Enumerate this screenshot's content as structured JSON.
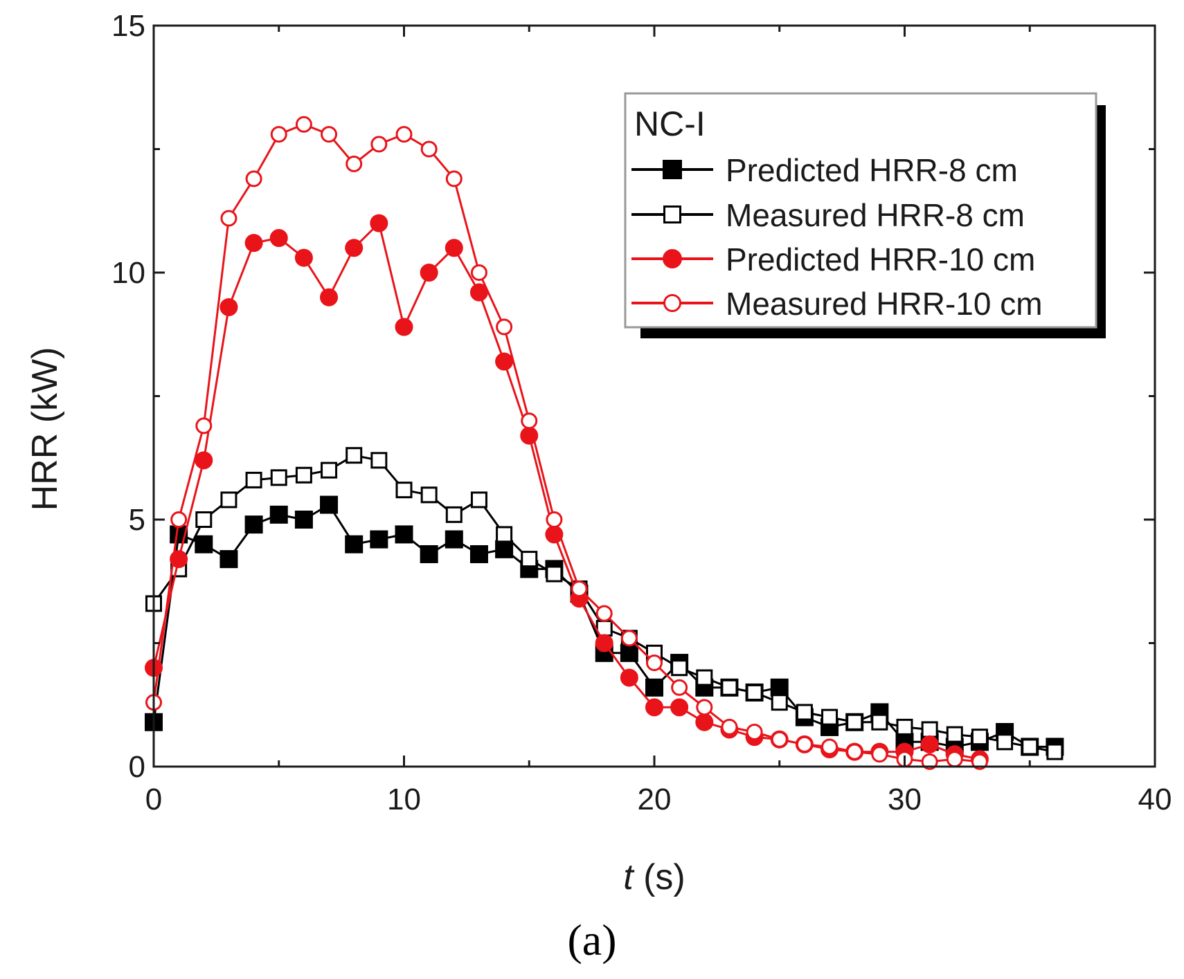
{
  "chart_data": {
    "type": "line",
    "panel_label": "(a)",
    "xlabel_italic": "t",
    "xlabel_unit": " (s)",
    "ylabel": "HRR (kW)",
    "xlim": [
      0,
      40
    ],
    "ylim": [
      0,
      15
    ],
    "x_ticks": [
      "0",
      "10",
      "20",
      "30",
      "40"
    ],
    "y_ticks": [
      "0",
      "5",
      "10",
      "15"
    ],
    "grid": false,
    "legend_title": "NC-I",
    "legend_position": "top-right",
    "series": [
      {
        "name": "Predicted HRR-8 cm",
        "color": "#000000",
        "marker": "square-filled",
        "x": [
          0,
          1,
          2,
          3,
          4,
          5,
          6,
          7,
          8,
          9,
          10,
          11,
          12,
          13,
          14,
          15,
          16,
          17,
          18,
          19,
          20,
          21,
          22,
          23,
          24,
          25,
          26,
          27,
          28,
          29,
          30,
          31,
          32,
          33,
          34,
          35,
          36
        ],
        "y": [
          0.9,
          4.7,
          4.5,
          4.2,
          4.9,
          5.1,
          5.0,
          5.3,
          4.5,
          4.6,
          4.7,
          4.3,
          4.6,
          4.3,
          4.4,
          4.0,
          4.0,
          3.5,
          2.3,
          2.3,
          1.6,
          2.1,
          1.6,
          1.6,
          1.5,
          1.6,
          1.0,
          0.8,
          0.9,
          1.1,
          0.5,
          0.5,
          0.4,
          0.5,
          0.7,
          0.4,
          0.4
        ]
      },
      {
        "name": "Measured HRR-8 cm",
        "color": "#000000",
        "marker": "square-open",
        "x": [
          0,
          1,
          2,
          3,
          4,
          5,
          6,
          7,
          8,
          9,
          10,
          11,
          12,
          13,
          14,
          15,
          16,
          17,
          18,
          19,
          20,
          21,
          22,
          23,
          24,
          25,
          26,
          27,
          28,
          29,
          30,
          31,
          32,
          33,
          34,
          35,
          36
        ],
        "y": [
          3.3,
          4.0,
          5.0,
          5.4,
          5.8,
          5.85,
          5.9,
          6.0,
          6.3,
          6.2,
          5.6,
          5.5,
          5.1,
          5.4,
          4.7,
          4.2,
          3.9,
          3.6,
          2.8,
          2.6,
          2.3,
          2.0,
          1.8,
          1.6,
          1.5,
          1.3,
          1.1,
          1.0,
          0.9,
          0.9,
          0.8,
          0.75,
          0.65,
          0.6,
          0.5,
          0.4,
          0.3
        ]
      },
      {
        "name": "Predicted HRR-10 cm",
        "color": "#e8141a",
        "marker": "circle-filled",
        "x": [
          0,
          1,
          2,
          3,
          4,
          5,
          6,
          7,
          8,
          9,
          10,
          11,
          12,
          13,
          14,
          15,
          16,
          17,
          18,
          19,
          20,
          21,
          22,
          23,
          24,
          25,
          26,
          27,
          28,
          29,
          30,
          31,
          32,
          33
        ],
        "y": [
          2.0,
          4.2,
          6.2,
          9.3,
          10.6,
          10.7,
          10.3,
          9.5,
          10.5,
          11.0,
          8.9,
          10.0,
          10.5,
          9.6,
          8.2,
          6.7,
          4.7,
          3.4,
          2.5,
          1.8,
          1.2,
          1.2,
          0.9,
          0.75,
          0.6,
          0.55,
          0.45,
          0.35,
          0.3,
          0.3,
          0.3,
          0.45,
          0.25,
          0.15
        ]
      },
      {
        "name": "Measured HRR-10 cm",
        "color": "#e8141a",
        "marker": "circle-open",
        "x": [
          0,
          1,
          2,
          3,
          4,
          5,
          6,
          7,
          8,
          9,
          10,
          11,
          12,
          13,
          14,
          15,
          16,
          17,
          18,
          19,
          20,
          21,
          22,
          23,
          24,
          25,
          26,
          27,
          28,
          29,
          30,
          31,
          32,
          33
        ],
        "y": [
          1.3,
          5.0,
          6.9,
          11.1,
          11.9,
          12.8,
          13.0,
          12.8,
          12.2,
          12.6,
          12.8,
          12.5,
          11.9,
          10.0,
          8.9,
          7.0,
          5.0,
          3.6,
          3.1,
          2.6,
          2.1,
          1.6,
          1.2,
          0.8,
          0.7,
          0.55,
          0.45,
          0.4,
          0.3,
          0.25,
          0.15,
          0.1,
          0.15,
          0.1
        ]
      }
    ]
  }
}
